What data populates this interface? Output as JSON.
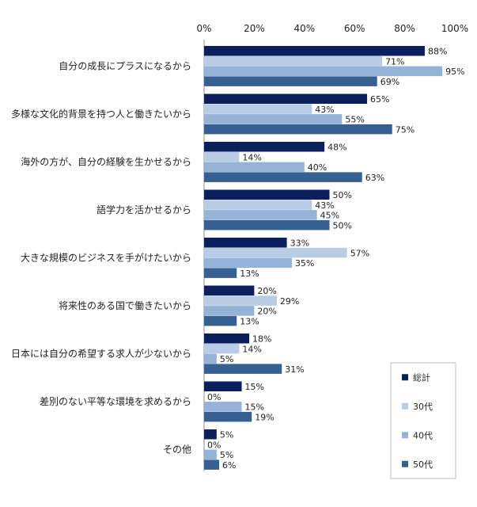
{
  "chart_data": {
    "type": "bar",
    "orientation": "horizontal",
    "title": "",
    "xlabel": "",
    "ylabel": "",
    "xlim": [
      0,
      100
    ],
    "xticks": [
      "0%",
      "20%",
      "40%",
      "60%",
      "80%",
      "100%"
    ],
    "x_axis_position": "top",
    "grid": false,
    "legend_position": "right",
    "unit": "%",
    "categories": [
      "自分の成長にプラスになるから",
      "多様な文化的背景を持つ人と働きたいから",
      "海外の方が、自分の経験を生かせるから",
      "語学力を活かせるから",
      "大きな規模のビジネスを手がけたいから",
      "将来性のある国で働きたいから",
      "日本には自分の希望する求人が少ないから",
      "差別のない平等な環境を求めるから",
      "その他"
    ],
    "series": [
      {
        "name": "総計",
        "color": "#0b1f5c",
        "values": [
          88,
          65,
          48,
          50,
          33,
          20,
          18,
          15,
          5
        ]
      },
      {
        "name": "30代",
        "color": "#b8cce4",
        "values": [
          71,
          43,
          14,
          43,
          57,
          29,
          14,
          0,
          0
        ]
      },
      {
        "name": "40代",
        "color": "#95b3d7",
        "values": [
          95,
          55,
          40,
          45,
          35,
          20,
          5,
          15,
          5
        ]
      },
      {
        "name": "50代",
        "color": "#366092",
        "values": [
          69,
          75,
          63,
          50,
          13,
          13,
          31,
          19,
          6
        ]
      }
    ]
  }
}
